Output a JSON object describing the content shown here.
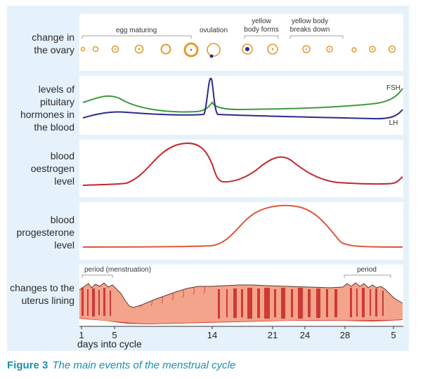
{
  "rows": {
    "ovary": [
      "change in",
      "the ovary"
    ],
    "hormones": [
      "levels of",
      "pituitary",
      "hormones in",
      "the blood"
    ],
    "oestrogen": [
      "blood",
      "oestrogen",
      "level"
    ],
    "progesterone": [
      "blood",
      "progesterone",
      "level"
    ],
    "uterus": [
      "changes to the",
      "uterus lining"
    ]
  },
  "ovary_labels": {
    "egg_maturing": "egg maturing",
    "ovulation": "ovulation",
    "yellow_body_forms": [
      "yellow",
      "body forms"
    ],
    "yellow_body_breaks": [
      "yellow body",
      "breaks down"
    ]
  },
  "hormone_series": {
    "fsh": "FSH",
    "lh": "LH"
  },
  "uterus_labels": {
    "period1": "period (menstruation)",
    "period2": "period"
  },
  "axis": {
    "ticks": [
      "1",
      "5",
      "14",
      "21",
      "24",
      "28",
      "5"
    ],
    "title": "days into cycle"
  },
  "caption": {
    "label": "Figure 3",
    "text": "The main events of the menstrual cycle"
  },
  "colors": {
    "fsh": "#3f9a3f",
    "lh": "#2c2c8a",
    "oestrogen": "#c0282d",
    "progesterone": "#e0563c",
    "uterus_fill": "#f4a48a",
    "uterus_dark": "#c62828",
    "egg": "#e69a2a",
    "caption": "#1a8fae"
  }
}
